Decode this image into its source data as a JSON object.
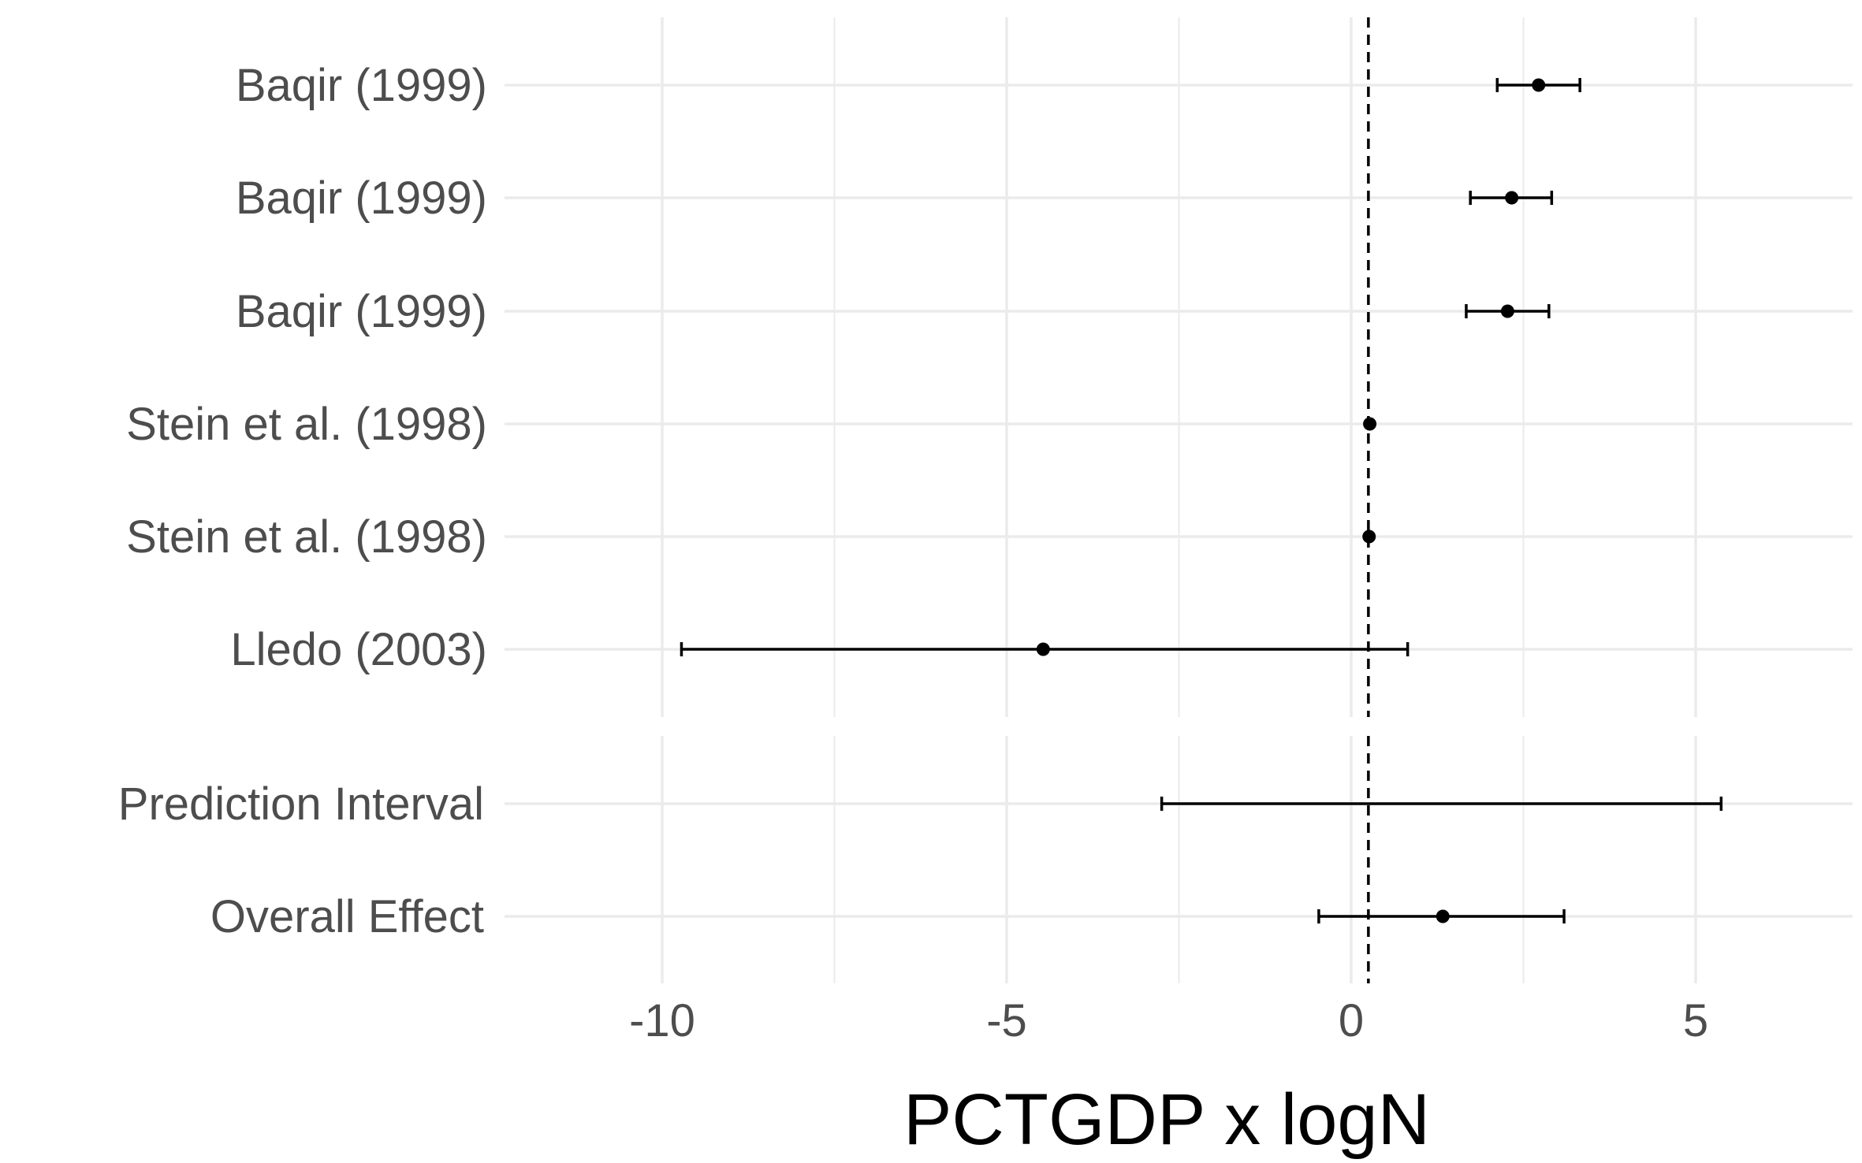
{
  "chart_data": {
    "type": "forest",
    "xlabel": "PCTGDP x logN",
    "xlim": [
      -12.5,
      7.2
    ],
    "x_ticks": [
      -10,
      -5,
      0,
      5
    ],
    "x_tick_labels": [
      "-10",
      "-5",
      "0",
      "5"
    ],
    "reference_line": 0.25,
    "grid": true,
    "studies": [
      {
        "label": "Baqir (1999)",
        "estimate": 2.72,
        "lower": 2.12,
        "upper": 3.32
      },
      {
        "label": "Baqir (1999)",
        "estimate": 2.33,
        "lower": 1.73,
        "upper": 2.91
      },
      {
        "label": "Baqir (1999)",
        "estimate": 2.27,
        "lower": 1.67,
        "upper": 2.87
      },
      {
        "label": "Stein et al. (1998)",
        "estimate": 0.27,
        "lower": 0.27,
        "upper": 0.27
      },
      {
        "label": "Stein et al. (1998)",
        "estimate": 0.26,
        "lower": 0.26,
        "upper": 0.26
      },
      {
        "label": "Lledo (2003)",
        "estimate": -4.47,
        "lower": -9.72,
        "upper": 0.82
      }
    ],
    "summary": [
      {
        "label": "Prediction Interval",
        "estimate": null,
        "lower": -2.75,
        "upper": 5.37
      },
      {
        "label": "Overall Effect",
        "estimate": 1.33,
        "lower": -0.47,
        "upper": 3.09
      }
    ],
    "colors": {
      "grid": "#ebebeb",
      "marks": "#000000",
      "axis_text": "#4d4d4d"
    }
  }
}
